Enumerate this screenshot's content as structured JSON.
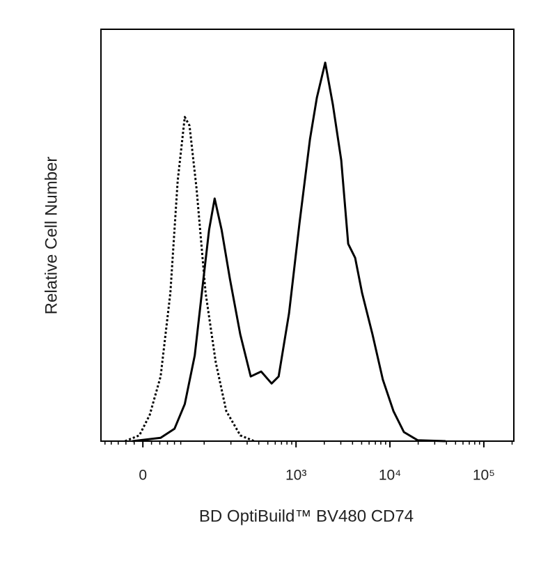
{
  "chart_data": {
    "type": "line",
    "x_label": "BD OptiBuild™ BV480 CD74",
    "y_label": "Relative Cell Number",
    "x_scale": "biexponential",
    "xlim": [
      -57,
      208700
    ],
    "ylim": [
      0,
      100
    ],
    "xticks": [
      0,
      {
        "value": 1000,
        "label": "10³"
      },
      {
        "value": 10000,
        "label": "10⁴"
      },
      {
        "value": 100000,
        "label": "10⁵"
      }
    ],
    "xminorticks": [
      -50,
      -40,
      -30,
      -20,
      -10,
      10,
      20,
      30,
      40,
      50,
      100,
      200,
      300,
      400,
      500,
      600,
      700,
      800,
      900,
      2000,
      3000,
      4000,
      5000,
      6000,
      7000,
      8000,
      9000,
      20000,
      30000,
      40000,
      50000,
      60000,
      70000,
      80000,
      90000,
      200000
    ],
    "series": [
      {
        "color": "#000000",
        "dash": "solid",
        "x": [
          -12,
          21,
          40,
          57,
          77,
          98,
          114,
          132,
          158,
          195,
          253,
          328,
          424,
          549,
          652,
          842,
          1090,
          1408,
          1668,
          2047,
          2470,
          3030,
          3593,
          4263,
          5050,
          6520,
          8420,
          10900,
          14100,
          19800,
          39100
        ],
        "values": [
          0,
          0.8,
          3.0,
          9.0,
          20.8,
          39.4,
          51.3,
          58.9,
          51.3,
          39.4,
          25.9,
          15.7,
          16.9,
          14.0,
          15.7,
          31.0,
          53.0,
          73.3,
          83.4,
          91.9,
          81.7,
          68.2,
          47.9,
          44.5,
          36.0,
          25.9,
          14.9,
          7.3,
          2.2,
          0.2,
          0
        ]
      },
      {
        "color": "#000000",
        "dash": "dotted",
        "x": [
          -21,
          -4,
          8,
          21,
          34,
          45,
          57,
          66,
          81,
          104,
          136,
          178,
          253,
          357
        ],
        "values": [
          0,
          1.4,
          6.4,
          15.7,
          36.0,
          63.2,
          78.7,
          76.6,
          61.3,
          36.0,
          19.1,
          7.3,
          1.4,
          0
        ]
      }
    ]
  }
}
